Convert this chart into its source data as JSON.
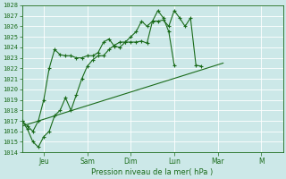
{
  "xlabel": "Pression niveau de la mer( hPa )",
  "bg_color": "#cce8e8",
  "grid_color": "#aacccc",
  "line_color": "#1a6b1a",
  "ylim": [
    1014,
    1028
  ],
  "yticks": [
    1014,
    1015,
    1016,
    1017,
    1018,
    1019,
    1020,
    1021,
    1022,
    1023,
    1024,
    1025,
    1026,
    1027,
    1028
  ],
  "x_day_labels": [
    "Jeu",
    "Sam",
    "Dim",
    "Lun",
    "Mar",
    "M"
  ],
  "x_day_positions": [
    24,
    72,
    120,
    168,
    216,
    264
  ],
  "xlim": [
    0,
    288
  ],
  "series_upper_x": [
    0,
    6,
    12,
    18,
    24,
    30,
    36,
    42,
    48,
    54,
    60,
    66,
    72,
    78,
    84,
    90,
    96,
    102,
    108,
    114,
    120,
    126,
    132,
    138,
    144,
    150,
    156,
    162,
    168,
    174,
    180,
    186,
    192,
    198,
    204,
    210,
    216,
    222
  ],
  "series_upper_y": [
    1017,
    1016.5,
    1016,
    1017,
    1019,
    1022,
    1023.8,
    1023.3,
    1023.2,
    1023.2,
    1023.0,
    1023.0,
    1023.2,
    1023.2,
    1023.5,
    1024.5,
    1024.8,
    1024.1,
    1024.0,
    1024.5,
    1024.5,
    1024.5,
    1024.6,
    1024.4,
    1026.5,
    1026.5,
    1026.6,
    1026.0,
    1027.5,
    1026.8,
    1026.0,
    1026.8,
    1022.3,
    1022.2,
    null,
    null,
    null,
    null
  ],
  "series_lower_x": [
    0,
    6,
    12,
    18,
    24,
    30,
    36,
    42,
    48,
    54,
    60,
    66,
    72,
    78,
    84,
    90,
    96,
    102,
    108,
    114,
    120,
    126,
    132,
    138,
    144,
    150,
    156,
    162,
    168,
    174,
    180,
    186,
    192,
    198,
    204,
    210,
    216,
    222
  ],
  "series_lower_y": [
    1017,
    1016.2,
    1015,
    1014.5,
    1015.5,
    1016,
    1017.5,
    1018,
    1019.2,
    1018.0,
    1019.5,
    1021.0,
    1022.2,
    1022.8,
    1023.2,
    1023.2,
    1023.8,
    1024.2,
    1024.5,
    1024.5,
    1025.0,
    1025.5,
    1026.5,
    1026.0,
    1026.5,
    1027.5,
    1026.8,
    1025.5,
    1022.3,
    null,
    null,
    null,
    null,
    null,
    null,
    null,
    null,
    null
  ],
  "series_trend_x": [
    0,
    222
  ],
  "series_trend_y": [
    1016.5,
    1022.5
  ]
}
